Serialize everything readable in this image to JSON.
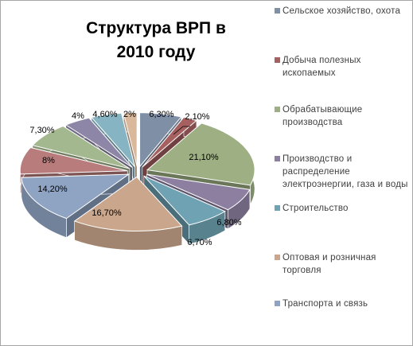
{
  "chart_data": {
    "type": "pie",
    "title": "Структура ВРП в\n2010 году",
    "slices": [
      {
        "label": "Сельское хозяйство, охота",
        "value": 6.3,
        "value_label": "6,30%",
        "color": "#7F8FA6"
      },
      {
        "label": "Добыча полезных ископаемых",
        "value": 2.1,
        "value_label": "2,10%",
        "color": "#A66060"
      },
      {
        "label": "Обрабатывающие производства",
        "value": 21.1,
        "value_label": "21,10%",
        "color": "#9DAF83"
      },
      {
        "label": "Производство и распределение электроэнергии, газа и воды",
        "value": 6.8,
        "value_label": "6,80%",
        "color": "#8C7FA0"
      },
      {
        "label": "Строительство",
        "value": 6.7,
        "value_label": "6,70%",
        "color": "#6FA3B3"
      },
      {
        "label": "Оптовая и розничная торговля",
        "value": 16.7,
        "value_label": "16,70%",
        "color": "#C9A68C"
      },
      {
        "label": "Транспорта и связь",
        "value": 14.2,
        "value_label": "14,20%",
        "color": "#8FA3C2"
      },
      {
        "label": "",
        "value": 8.0,
        "value_label": "8%",
        "color": "#B87C7C"
      },
      {
        "label": "",
        "value": 7.3,
        "value_label": "7,30%",
        "color": "#A4B88F"
      },
      {
        "label": "",
        "value": 4.0,
        "value_label": "4%",
        "color": "#8E86A6"
      },
      {
        "label": "",
        "value": 4.6,
        "value_label": "4,60%",
        "color": "#86B4C2"
      },
      {
        "label": "",
        "value": 2.0,
        "value_label": "2%",
        "color": "#D9B89C"
      }
    ],
    "legend_position": "right",
    "exploded": true,
    "three_d": true
  }
}
